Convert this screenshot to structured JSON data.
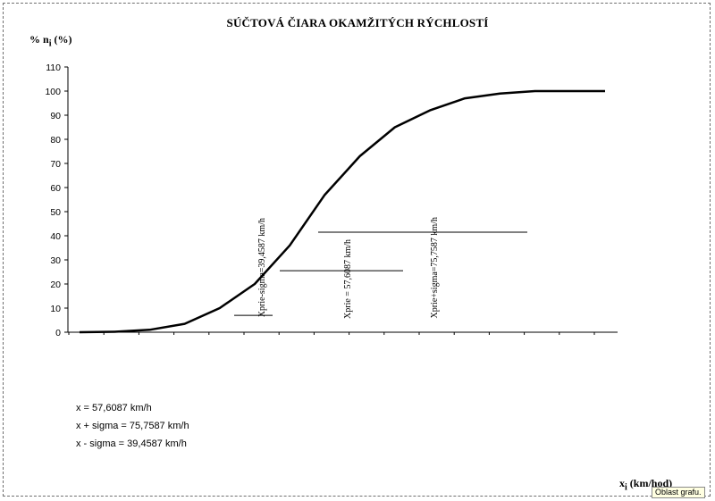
{
  "chart_data": {
    "type": "line",
    "title": "SÚČTOVÁ ČIARA OKAMŽITÝCH RÝCHLOSTÍ",
    "ylabel_main": "% n",
    "ylabel_sub": "i",
    "ylabel_unit": " (%)",
    "xlabel_main": "x",
    "xlabel_sub": "i",
    "xlabel_unit": " (km/hod)",
    "ylim": [
      0,
      110
    ],
    "yticks": [
      0,
      10,
      20,
      30,
      40,
      50,
      60,
      70,
      80,
      90,
      100,
      110
    ],
    "x_categories": 16,
    "grid": false,
    "series": [
      {
        "points": [
          [
            0,
            0
          ],
          [
            1,
            0.2
          ],
          [
            2,
            1
          ],
          [
            3,
            3.5
          ],
          [
            4,
            10
          ],
          [
            5,
            20
          ],
          [
            6,
            36
          ],
          [
            7,
            57
          ],
          [
            8,
            73
          ],
          [
            9,
            85
          ],
          [
            10,
            92
          ],
          [
            11,
            97
          ],
          [
            12,
            99
          ],
          [
            13,
            100
          ],
          [
            14,
            100
          ],
          [
            15,
            100
          ]
        ],
        "color": "#000000"
      }
    ],
    "annotations": [
      {
        "label": "Xprie-sigma=39,4587  km/h",
        "line_y": 7
      },
      {
        "label": "Xprie = 57,6087 km/h",
        "line_y": 25.5
      },
      {
        "label": "Xprie+sigma=75,7587 km/h",
        "line_y": 41.5
      }
    ]
  },
  "notes": [
    "x = 57,6087 km/h",
    "x + sigma = 75,7587 km/h",
    "x - sigma = 39,4587 km/h"
  ],
  "tooltip": "Oblast grafu."
}
